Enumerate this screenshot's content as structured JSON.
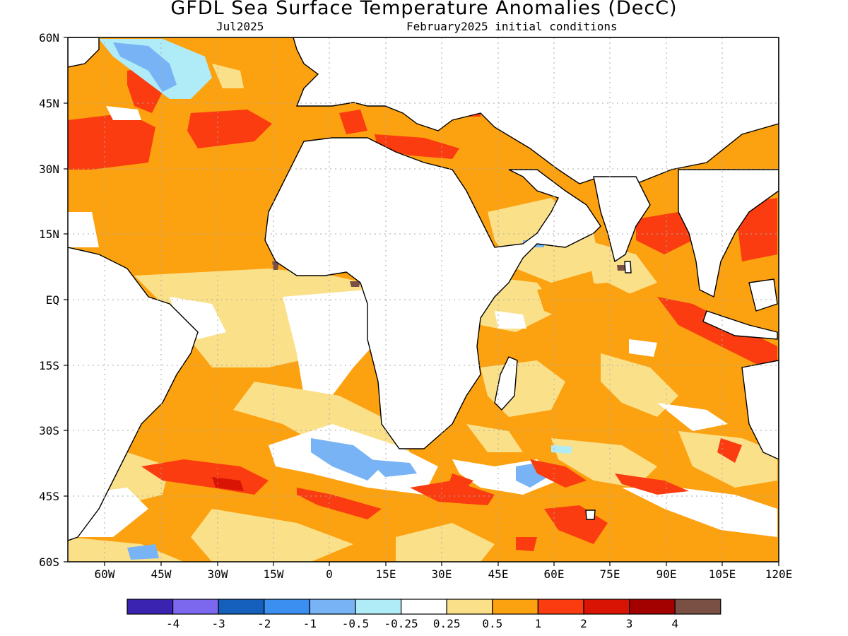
{
  "header": {
    "title": "GFDL Sea Surface Temperature Anomalies (DecC)",
    "left_subtitle": "Jul2025",
    "right_subtitle": "February2025 initial conditions"
  },
  "axes": {
    "lat_labels": [
      "60N",
      "45N",
      "30N",
      "15N",
      "EQ",
      "15S",
      "30S",
      "45S",
      "60S"
    ],
    "lon_labels": [
      "60W",
      "45W",
      "30W",
      "15W",
      "0",
      "15E",
      "30E",
      "45E",
      "60E",
      "75E",
      "90E",
      "105E",
      "120E"
    ]
  },
  "colorbar": {
    "colors": [
      "#3a23b0",
      "#7b68ee",
      "#1560bd",
      "#3b8ff0",
      "#78b4f5",
      "#b0ecf8",
      "#ffffff",
      "#fbe08a",
      "#fca10f",
      "#fa3c10",
      "#d91405",
      "#a30000",
      "#7a5045"
    ],
    "labels": [
      "-4",
      "-3",
      "-2",
      "-1",
      "-0.5",
      "-0.25",
      "0.25",
      "0.5",
      "1",
      "2",
      "3",
      "4"
    ]
  },
  "map_colors": {
    "land": "#ffffff",
    "coast": "#000000",
    "grid": "#aaaaaa"
  }
}
